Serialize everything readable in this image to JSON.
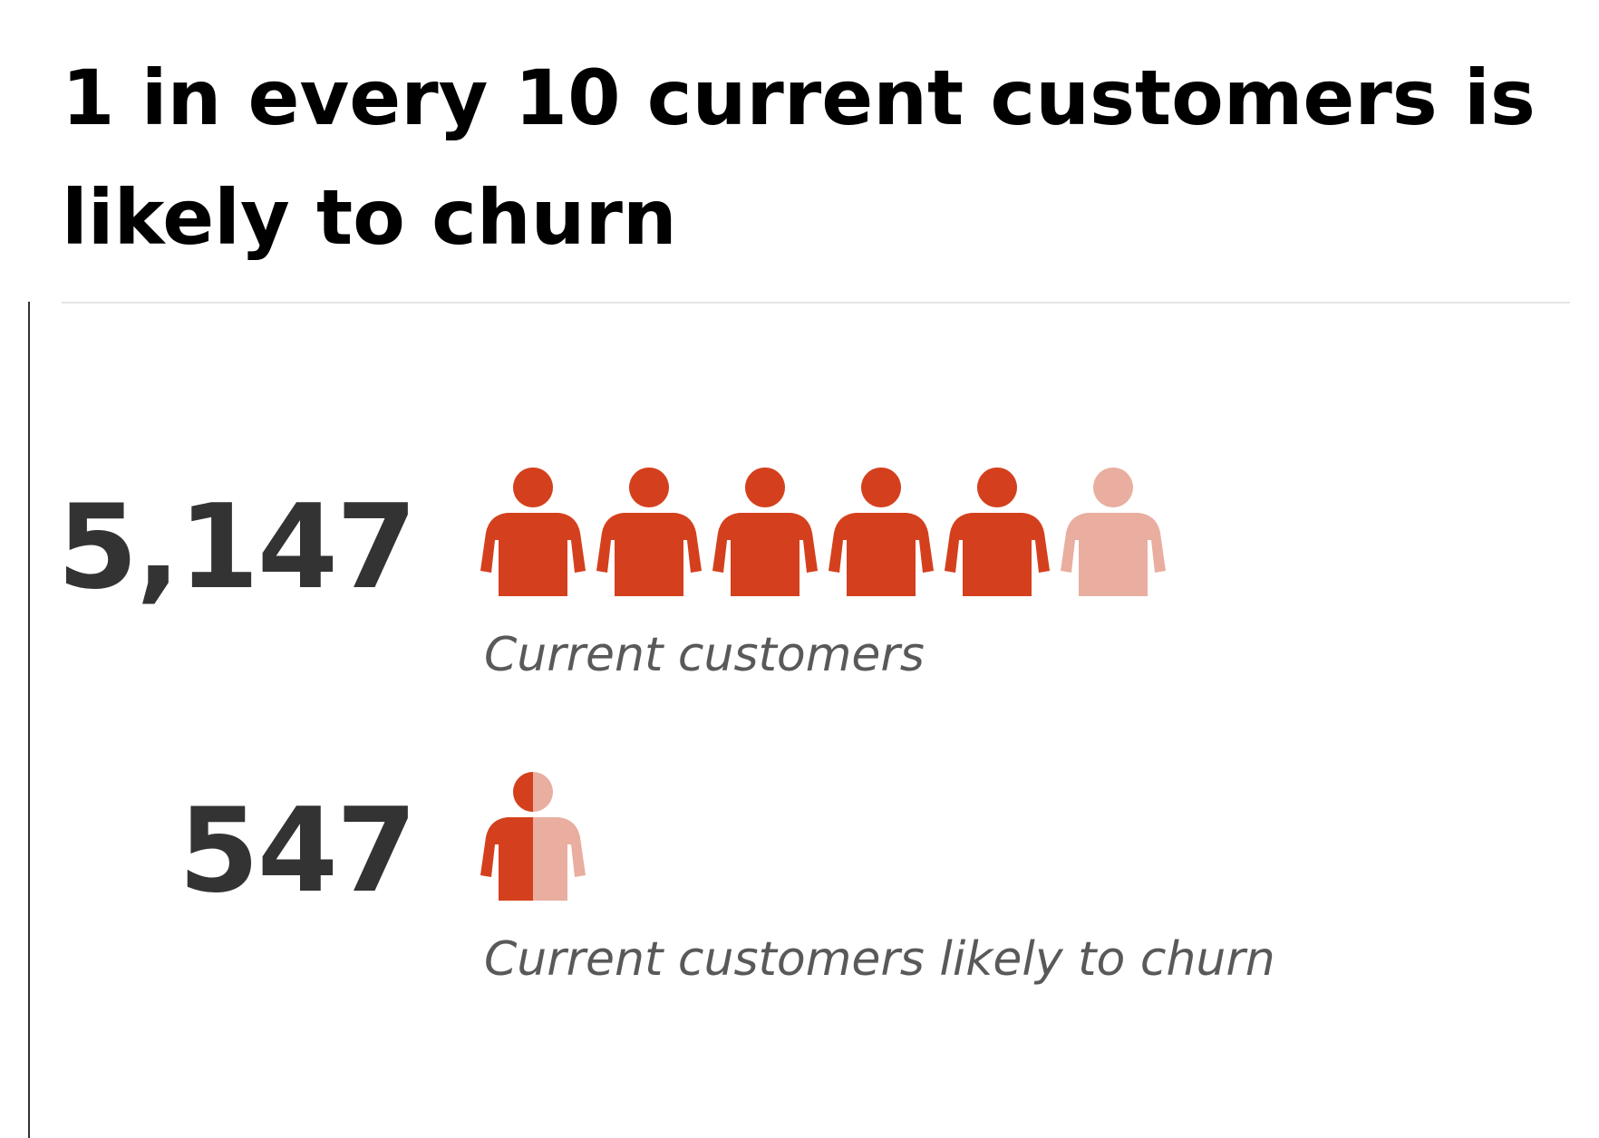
{
  "colors": {
    "accent": "#d4401d",
    "accent_light": "#e9aea0",
    "value_text": "#333333",
    "label_text": "#595959"
  },
  "chart_data": {
    "type": "pictograph",
    "title": "1 in every 10 current customers is likely to churn",
    "icon": "person-icon",
    "metrics": [
      {
        "value_label": "5,147",
        "value": 5147,
        "label": "Current customers",
        "icons_total": 6,
        "icons_filled": 5
      },
      {
        "value_label": "547",
        "value": 547,
        "label": "Current customers likely to churn",
        "icons_total": 1,
        "icons_filled": 0.5
      }
    ]
  }
}
